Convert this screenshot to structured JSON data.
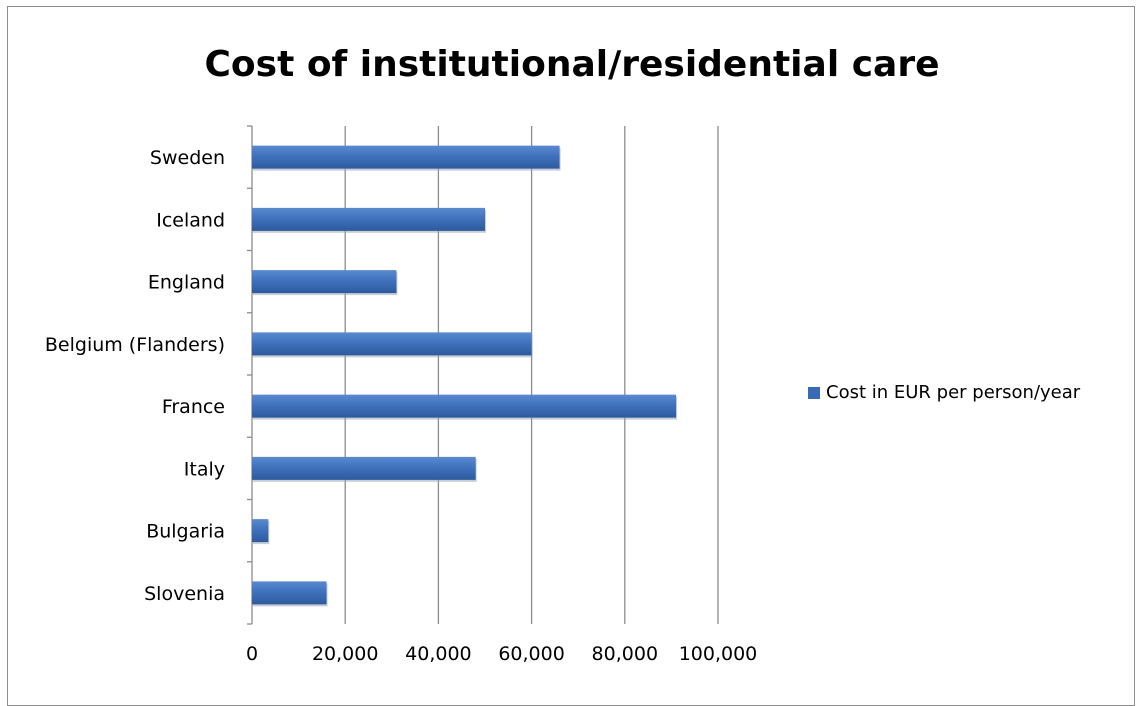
{
  "chart_data": {
    "type": "bar",
    "orientation": "horizontal",
    "title": "Cost of institutional/residential care",
    "categories": [
      "Sweden",
      "Iceland",
      "England",
      "Belgium (Flanders)",
      "France",
      "Italy",
      "Bulgaria",
      "Slovenia"
    ],
    "series": [
      {
        "name": "Cost in EUR per person/year",
        "values": [
          66000,
          50000,
          31000,
          60000,
          91000,
          48000,
          3500,
          16000
        ],
        "color": "#3a6bb5"
      }
    ],
    "xlim": [
      0,
      100000
    ],
    "x_ticks": [
      "0",
      "20,000",
      "40,000",
      "60,000",
      "80,000",
      "100,000"
    ],
    "grid": "vertical",
    "legend_position": "right"
  }
}
